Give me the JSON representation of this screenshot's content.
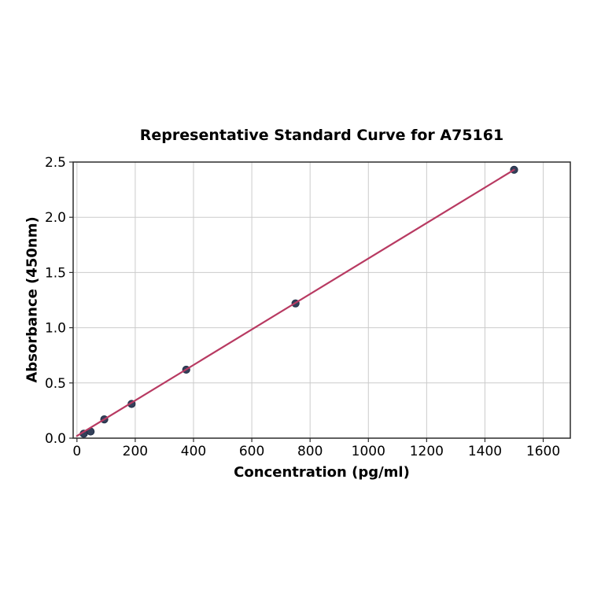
{
  "figure": {
    "background": "#ffffff"
  },
  "chart_data": {
    "type": "scatter",
    "title": "Representative Standard Curve for A75161",
    "xlabel": "Concentration (pg/ml)",
    "ylabel": "Absorbance (450nm)",
    "x": [
      23.4,
      46.9,
      93.8,
      187.5,
      375,
      750,
      1500
    ],
    "y": [
      0.04,
      0.06,
      0.17,
      0.31,
      0.62,
      1.22,
      2.43
    ],
    "fit_line": {
      "x": [
        0,
        1500
      ],
      "y": [
        0.02,
        2.43
      ]
    },
    "x_ticks": [
      "0",
      "200",
      "400",
      "600",
      "800",
      "1000",
      "1200",
      "1400",
      "1600"
    ],
    "x_tick_values": [
      0,
      200,
      400,
      600,
      800,
      1000,
      1200,
      1400,
      1600
    ],
    "y_ticks": [
      "0.0",
      "0.5",
      "1.0",
      "1.5",
      "2.0",
      "2.5"
    ],
    "y_tick_values": [
      0,
      0.5,
      1.0,
      1.5,
      2.0,
      2.5
    ],
    "xlim": [
      -13,
      1693
    ],
    "ylim": [
      0,
      2.5
    ],
    "grid": true,
    "legend": "none",
    "colors": {
      "line": "#b83a62",
      "marker": "#33405a",
      "marker_edge": "#222f47",
      "grid": "#cbcbcb",
      "spine": "#2b2b2b",
      "text": "#000000"
    }
  }
}
